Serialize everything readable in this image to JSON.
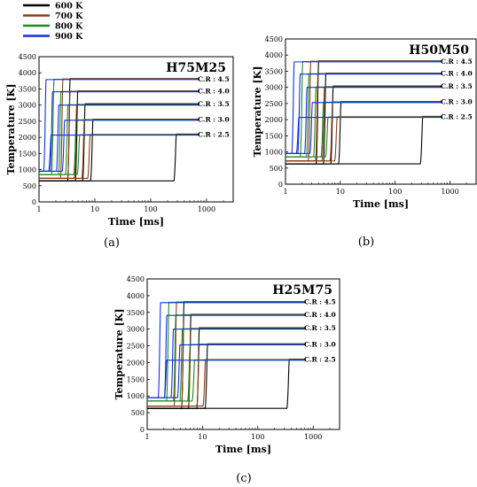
{
  "legend": [
    {
      "label": "600 K",
      "color": "#000000"
    },
    {
      "label": "700 K",
      "color": "#8b3a12"
    },
    {
      "label": "800 K",
      "color": "#1f8a1f"
    },
    {
      "label": "900 K",
      "color": "#1030e0"
    }
  ],
  "chart_data": [
    {
      "type": "line",
      "title": "H75M25",
      "panel_label": "(a)",
      "xlabel": "Time [ms]",
      "ylabel": "Temperature [K]",
      "xscale": "log",
      "xlim": [
        1,
        3000
      ],
      "ylim": [
        0,
        4500
      ],
      "xticks": [
        1,
        10,
        100,
        1000
      ],
      "xtick_labels": [
        "1",
        "10",
        "100",
        "1000"
      ],
      "yticks": [
        0,
        500,
        1000,
        1500,
        2000,
        2500,
        3000,
        3500,
        4000,
        4500
      ],
      "annotations": [
        "C.R : 4.5",
        "C.R : 4.0",
        "C.R : 3.5",
        "C.R : 3.0",
        "C.R : 2.5"
      ],
      "series": [
        {
          "name": "600 K",
          "ignition_times": [
            3.5,
            4.8,
            6.5,
            9.0,
            280
          ],
          "initial_temp": 650,
          "peak_temps": [
            3820,
            3440,
            3040,
            2560,
            2100
          ]
        },
        {
          "name": "700 K",
          "ignition_times": [
            2.6,
            3.5,
            4.6,
            6.3,
            8.0
          ],
          "initial_temp": 730,
          "peak_temps": [
            3810,
            3430,
            3020,
            2550,
            2090
          ]
        },
        {
          "name": "800 K",
          "ignition_times": [
            1.8,
            2.4,
            3.2,
            4.5,
            5.2
          ],
          "initial_temp": 850,
          "peak_temps": [
            3800,
            3420,
            3010,
            2540,
            2080
          ]
        },
        {
          "name": "900 K",
          "ignition_times": [
            1.3,
            1.7,
            2.2,
            2.8,
            1.6
          ],
          "initial_temp": 950,
          "peak_temps": [
            3790,
            3410,
            3000,
            2530,
            2070
          ]
        }
      ]
    },
    {
      "type": "line",
      "title": "H50M50",
      "panel_label": "(b)",
      "xlabel": "Time [ms]",
      "ylabel": "Temperature [K]",
      "xscale": "log",
      "xlim": [
        1,
        3000
      ],
      "ylim": [
        0,
        4500
      ],
      "xticks": [
        1,
        10,
        100,
        1000
      ],
      "xtick_labels": [
        "1",
        "10",
        "100",
        "1000"
      ],
      "yticks": [
        0,
        500,
        1000,
        1500,
        2000,
        2500,
        3000,
        3500,
        4000,
        4500
      ],
      "annotations": [
        "C.R : 4.5",
        "C.R : 4.0",
        "C.R : 3.5",
        "C.R : 3.0",
        "C.R : 2.5"
      ],
      "series": [
        {
          "name": "600 K",
          "ignition_times": [
            3.9,
            5.3,
            7.2,
            10.0,
            310
          ],
          "initial_temp": 630,
          "peak_temps": [
            3820,
            3440,
            3040,
            2560,
            2100
          ]
        },
        {
          "name": "700 K",
          "ignition_times": [
            2.8,
            3.8,
            5.0,
            7.0,
            8.5
          ],
          "initial_temp": 720,
          "peak_temps": [
            3810,
            3430,
            3020,
            2550,
            2090
          ]
        },
        {
          "name": "800 K",
          "ignition_times": [
            2.0,
            2.6,
            3.5,
            4.8,
            5.8
          ],
          "initial_temp": 850,
          "peak_temps": [
            3800,
            3420,
            3010,
            2540,
            2080
          ]
        },
        {
          "name": "900 K",
          "ignition_times": [
            1.4,
            1.8,
            2.4,
            3.0,
            1.7
          ],
          "initial_temp": 950,
          "peak_temps": [
            3790,
            3410,
            3000,
            2530,
            2070
          ]
        }
      ]
    },
    {
      "type": "line",
      "title": "H25M75",
      "panel_label": "(c)",
      "xlabel": "Time [ms]",
      "ylabel": "Temperature [K]",
      "xscale": "log",
      "xlim": [
        1,
        3000
      ],
      "ylim": [
        0,
        4500
      ],
      "xticks": [
        1,
        10,
        100,
        1000
      ],
      "xtick_labels": [
        "1",
        "10",
        "100",
        "1000"
      ],
      "yticks": [
        0,
        500,
        1000,
        1500,
        2000,
        2500,
        3000,
        3500,
        4000,
        4500
      ],
      "annotations": [
        "C.R : 4.5",
        "C.R : 4.0",
        "C.R : 3.5",
        "C.R : 3.0",
        "C.R : 2.5"
      ],
      "series": [
        {
          "name": "600 K",
          "ignition_times": [
            4.5,
            6.0,
            8.5,
            12.0,
            360
          ],
          "initial_temp": 630,
          "peak_temps": [
            3820,
            3440,
            3040,
            2560,
            2100
          ]
        },
        {
          "name": "700 K",
          "ignition_times": [
            3.3,
            4.5,
            6.0,
            8.5,
            11.0
          ],
          "initial_temp": 700,
          "peak_temps": [
            3810,
            3430,
            3020,
            2550,
            2090
          ]
        },
        {
          "name": "800 K",
          "ignition_times": [
            2.4,
            3.2,
            4.2,
            5.8,
            7.0
          ],
          "initial_temp": 850,
          "peak_temps": [
            3800,
            3420,
            3010,
            2540,
            2080
          ]
        },
        {
          "name": "900 K",
          "ignition_times": [
            1.7,
            2.2,
            2.9,
            3.8,
            2.2
          ],
          "initial_temp": 950,
          "peak_temps": [
            3790,
            3410,
            3000,
            2530,
            2070
          ]
        }
      ]
    }
  ]
}
